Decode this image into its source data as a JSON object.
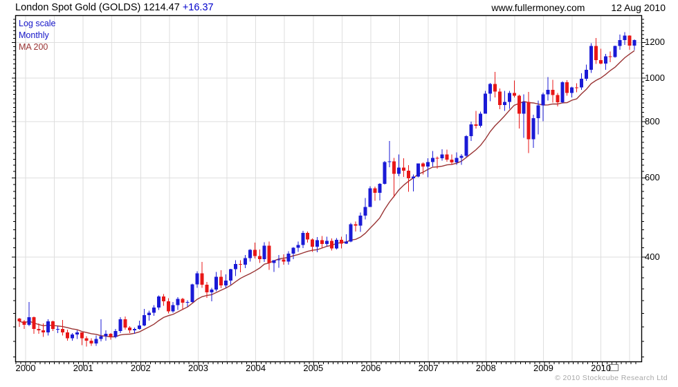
{
  "header": {
    "title": "London Spot Gold (GOLDS) 1214.47",
    "change": "+16.37",
    "website": "www.fullermoney.com",
    "date": "12 Aug 2010"
  },
  "legend": {
    "scale_label": "Log scale",
    "period_label": "Monthly",
    "ma_label": "MA 200"
  },
  "footer": {
    "copyright": "© 2010 Stockcube Research Ltd"
  },
  "colors": {
    "up_candle": "#1a1ad6",
    "down_candle": "#e81717",
    "ma_line": "#993333",
    "legend_blue": "#1414c8",
    "title_change_blue": "#0000cc",
    "gridline": "#dedede",
    "axis": "#000000",
    "copyright_gray": "#a8a8a8"
  },
  "chart_data": {
    "type": "candlestick",
    "title": "London Spot Gold (GOLDS)",
    "last_price": 1214.47,
    "change": 16.37,
    "scale": "log",
    "interval": "monthly",
    "start": "1999-12",
    "end": "2010-08",
    "x_tick_years": [
      2000,
      2001,
      2002,
      2003,
      2004,
      2005,
      2006,
      2007,
      2008,
      2009,
      2010
    ],
    "y_ticks": [
      400,
      600,
      800,
      1000,
      1200
    ],
    "y_range_approx": [
      234,
      1380
    ],
    "grid": "half-year vertical, major horizontal",
    "legend_position": "top-left inside plot",
    "ma": {
      "label": "MA 200",
      "window_months": 11
    },
    "ohlc": [
      [
        292,
        293,
        280,
        288
      ],
      [
        288,
        290,
        277,
        283
      ],
      [
        283,
        318,
        281,
        294
      ],
      [
        294,
        295,
        270,
        277
      ],
      [
        277,
        285,
        270,
        275
      ],
      [
        275,
        285,
        266,
        272
      ],
      [
        272,
        291,
        268,
        288
      ],
      [
        288,
        289,
        274,
        277
      ],
      [
        277,
        281,
        271,
        277
      ],
      [
        277,
        290,
        268,
        272
      ],
      [
        272,
        276,
        261,
        264
      ],
      [
        264,
        271,
        261,
        269
      ],
      [
        269,
        275,
        263,
        272
      ],
      [
        272,
        272,
        255,
        264
      ],
      [
        264,
        267,
        253,
        261
      ],
      [
        261,
        264,
        254,
        257
      ],
      [
        257,
        268,
        254,
        263
      ],
      [
        263,
        291,
        260,
        267
      ],
      [
        267,
        275,
        261,
        270
      ],
      [
        270,
        271,
        262,
        266
      ],
      [
        266,
        277,
        264,
        274
      ],
      [
        274,
        294,
        271,
        291
      ],
      [
        291,
        295,
        276,
        279
      ],
      [
        279,
        281,
        271,
        275
      ],
      [
        275,
        279,
        270,
        277
      ],
      [
        277,
        289,
        276,
        282
      ],
      [
        282,
        307,
        281,
        297
      ],
      [
        297,
        304,
        289,
        301
      ],
      [
        301,
        313,
        296,
        309
      ],
      [
        309,
        329,
        305,
        327
      ],
      [
        327,
        331,
        312,
        319
      ],
      [
        319,
        324,
        300,
        303
      ],
      [
        303,
        318,
        301,
        313
      ],
      [
        313,
        326,
        305,
        323
      ],
      [
        323,
        325,
        305,
        317
      ],
      [
        317,
        321,
        310,
        318
      ],
      [
        318,
        349,
        317,
        348
      ],
      [
        348,
        372,
        342,
        368
      ],
      [
        368,
        390,
        342,
        347
      ],
      [
        347,
        352,
        325,
        334
      ],
      [
        334,
        342,
        319,
        339
      ],
      [
        339,
        371,
        336,
        362
      ],
      [
        362,
        374,
        341,
        346
      ],
      [
        346,
        366,
        342,
        355
      ],
      [
        355,
        377,
        347,
        376
      ],
      [
        376,
        394,
        363,
        386
      ],
      [
        386,
        394,
        370,
        385
      ],
      [
        385,
        404,
        378,
        398
      ],
      [
        398,
        417,
        391,
        415
      ],
      [
        415,
        431,
        397,
        402
      ],
      [
        402,
        416,
        388,
        396
      ],
      [
        396,
        432,
        390,
        424
      ],
      [
        424,
        433,
        375,
        388
      ],
      [
        388,
        394,
        371,
        394
      ],
      [
        394,
        404,
        379,
        395
      ],
      [
        395,
        406,
        385,
        391
      ],
      [
        391,
        412,
        385,
        407
      ],
      [
        407,
        421,
        396,
        420
      ],
      [
        420,
        433,
        411,
        426
      ],
      [
        426,
        458,
        419,
        453
      ],
      [
        453,
        456,
        431,
        438
      ],
      [
        438,
        440,
        411,
        422
      ],
      [
        422,
        443,
        410,
        436
      ],
      [
        436,
        446,
        420,
        428
      ],
      [
        428,
        444,
        423,
        435
      ],
      [
        435,
        440,
        414,
        418
      ],
      [
        418,
        441,
        416,
        437
      ],
      [
        437,
        444,
        418,
        429
      ],
      [
        429,
        450,
        428,
        433
      ],
      [
        433,
        477,
        432,
        473
      ],
      [
        473,
        480,
        456,
        470
      ],
      [
        470,
        503,
        455,
        495
      ],
      [
        495,
        541,
        485,
        517
      ],
      [
        517,
        575,
        517,
        569
      ],
      [
        569,
        574,
        534,
        556
      ],
      [
        556,
        584,
        535,
        582
      ],
      [
        582,
        654,
        580,
        651
      ],
      [
        651,
        725,
        634,
        653
      ],
      [
        653,
        665,
        543,
        613
      ],
      [
        613,
        676,
        605,
        632
      ],
      [
        632,
        664,
        603,
        623
      ],
      [
        623,
        640,
        559,
        599
      ],
      [
        599,
        611,
        560,
        604
      ],
      [
        604,
        646,
        602,
        646
      ],
      [
        646,
        650,
        611,
        636
      ],
      [
        636,
        663,
        602,
        651
      ],
      [
        651,
        689,
        636,
        665
      ],
      [
        665,
        669,
        629,
        663
      ],
      [
        663,
        695,
        655,
        677
      ],
      [
        677,
        693,
        652,
        659
      ],
      [
        659,
        676,
        642,
        650
      ],
      [
        650,
        684,
        642,
        665
      ],
      [
        665,
        678,
        642,
        672
      ],
      [
        672,
        747,
        667,
        743
      ],
      [
        743,
        800,
        725,
        789
      ],
      [
        789,
        846,
        773,
        783
      ],
      [
        783,
        843,
        776,
        834
      ],
      [
        834,
        937,
        833,
        923
      ],
      [
        923,
        975,
        889,
        971
      ],
      [
        971,
        1032,
        905,
        933
      ],
      [
        933,
        948,
        853,
        871
      ],
      [
        871,
        937,
        845,
        885
      ],
      [
        885,
        936,
        855,
        926
      ],
      [
        926,
        988,
        906,
        913
      ],
      [
        913,
        918,
        772,
        833
      ],
      [
        833,
        920,
        736,
        885
      ],
      [
        885,
        931,
        681,
        731
      ],
      [
        731,
        829,
        699,
        815
      ],
      [
        815,
        892,
        750,
        870
      ],
      [
        870,
        928,
        802,
        920
      ],
      [
        920,
        1006,
        891,
        942
      ],
      [
        942,
        992,
        882,
        917
      ],
      [
        917,
        927,
        865,
        883
      ],
      [
        883,
        985,
        879,
        979
      ],
      [
        979,
        990,
        913,
        927
      ],
      [
        927,
        957,
        905,
        954
      ],
      [
        954,
        973,
        930,
        953
      ],
      [
        953,
        1025,
        942,
        996
      ],
      [
        996,
        1071,
        986,
        1043
      ],
      [
        1043,
        1195,
        1026,
        1178
      ],
      [
        1178,
        1227,
        1075,
        1096
      ],
      [
        1096,
        1163,
        1074,
        1078
      ],
      [
        1078,
        1131,
        1044,
        1118
      ],
      [
        1118,
        1145,
        1085,
        1113
      ],
      [
        1113,
        1181,
        1110,
        1179
      ],
      [
        1179,
        1249,
        1156,
        1214
      ],
      [
        1214,
        1265,
        1186,
        1242
      ],
      [
        1242,
        1246,
        1157,
        1181
      ],
      [
        1181,
        1220,
        1155,
        1214.47
      ]
    ]
  }
}
